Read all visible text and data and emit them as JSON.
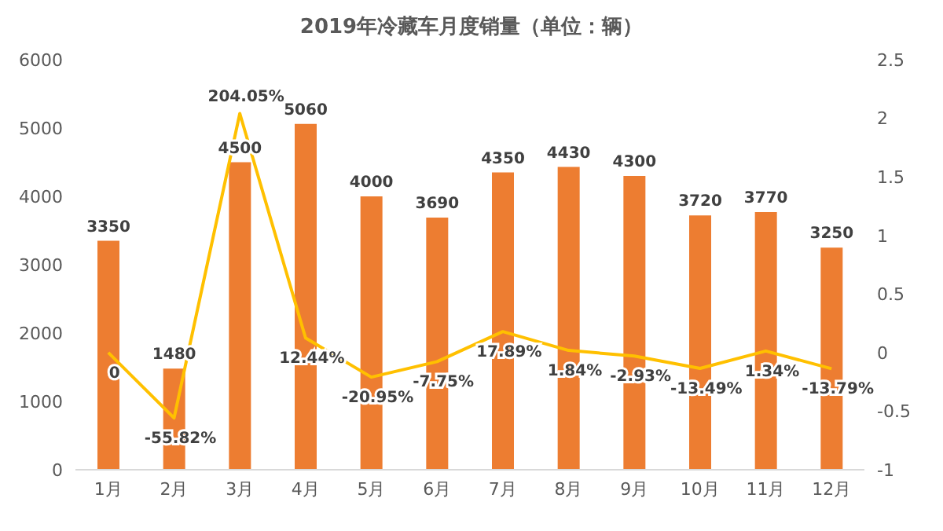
{
  "chart_data": {
    "type": "bar",
    "title": "2019年冷藏车月度销量（单位：辆）",
    "categories": [
      "1月",
      "2月",
      "3月",
      "4月",
      "5月",
      "6月",
      "7月",
      "8月",
      "9月",
      "10月",
      "11月",
      "12月"
    ],
    "series": [
      {
        "color": "#ed7d31",
        "values": [
          3350,
          1480,
          4500,
          5060,
          4000,
          3690,
          4350,
          4430,
          4300,
          3720,
          3770,
          3250
        ],
        "data_labels": true
      },
      {
        "type": "line",
        "axis": "y2",
        "color": "#ffc000",
        "marker": "none",
        "values": [
          0,
          -0.5582,
          2.0405,
          0.1244,
          -0.2095,
          -0.0775,
          0.1789,
          0.0184,
          -0.0293,
          -0.1349,
          0.0134,
          -0.1379
        ],
        "value_labels": [
          "0",
          "-55.82%",
          "204.05%",
          "12.44%",
          "-20.95%",
          "-7.75%",
          "17.89%",
          "1.84%",
          "-2.93%",
          "-13.49%",
          "1.34%",
          "-13.79%"
        ]
      }
    ],
    "ylim": [
      0,
      6000
    ],
    "yticks": [
      0,
      1000,
      2000,
      3000,
      4000,
      5000,
      6000
    ],
    "y2lim": [
      -1,
      2.5
    ],
    "y2ticks": [
      -1,
      -0.5,
      0,
      0.5,
      1,
      1.5,
      2,
      2.5
    ]
  }
}
